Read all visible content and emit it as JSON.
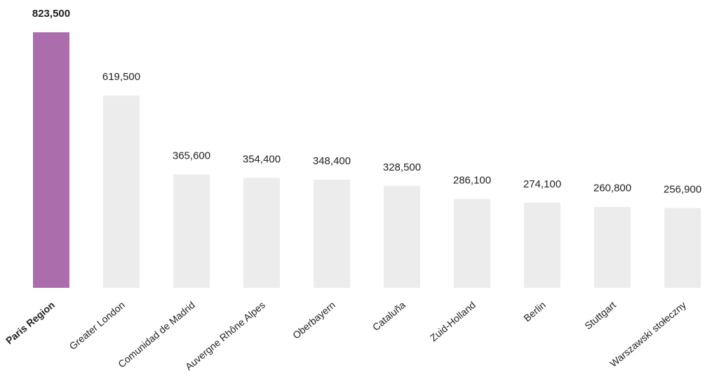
{
  "chart_data": {
    "type": "bar",
    "categories": [
      "Paris Region",
      "Greater London",
      "Comunidad de Madrid",
      "Auvergne Rhône Alpes",
      "Oberbayern",
      "Cataluña",
      "Zuid-Holland",
      "Berlin",
      "Stuttgart",
      "Warszawski stołeczny"
    ],
    "value_labels": [
      "823,500",
      "619,500",
      "365,600",
      "354,400",
      "348,400",
      "328,500",
      "286,100",
      "274,100",
      "260,800",
      "256,900"
    ],
    "values": [
      823500,
      619500,
      365600,
      354400,
      348400,
      328500,
      286100,
      274100,
      260800,
      256900
    ],
    "ylim": [
      0,
      823500
    ],
    "highlight_index": 0,
    "colors": {
      "highlight": "#ab6dab",
      "default": "#ececec",
      "text": "#222222"
    },
    "grid": false,
    "legend": "none"
  }
}
